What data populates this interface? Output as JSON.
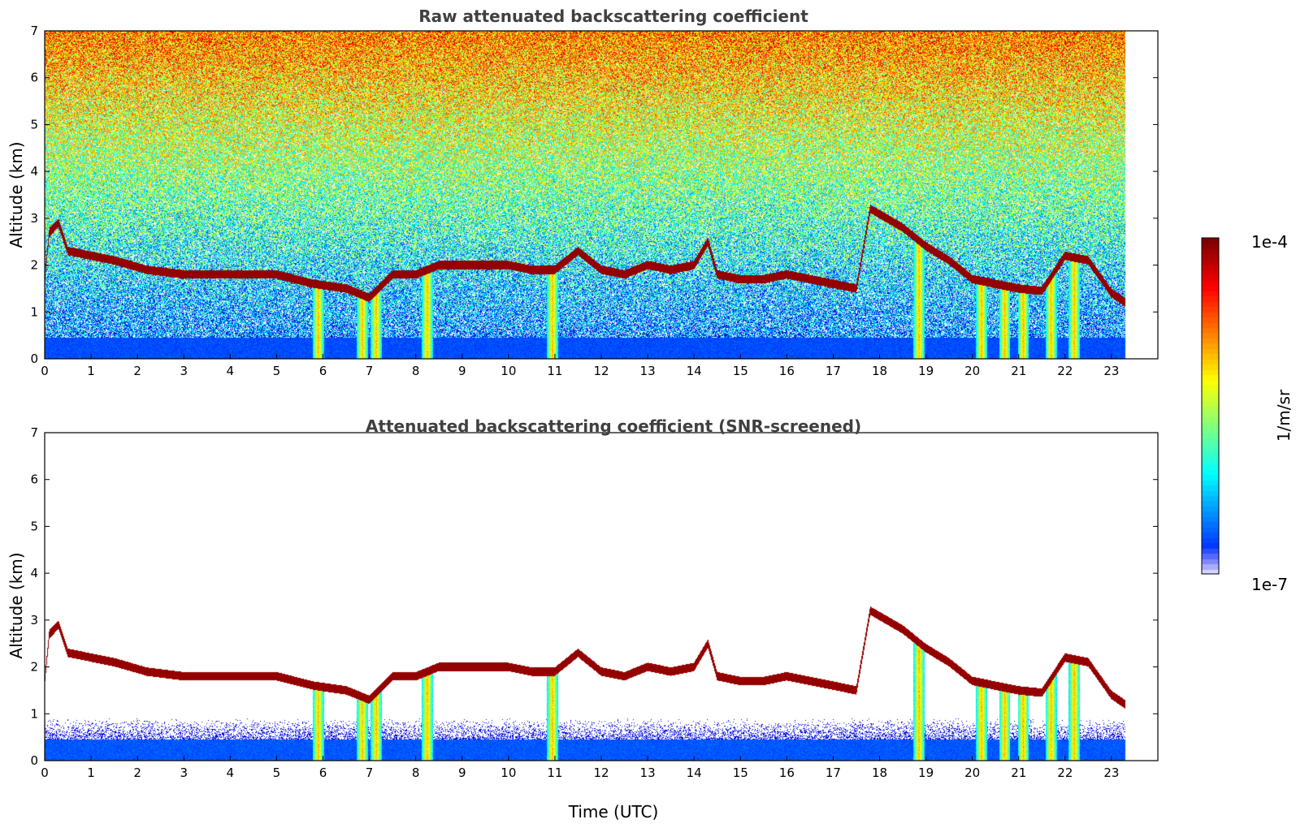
{
  "chart_data": [
    {
      "type": "heatmap",
      "title": "Raw attenuated backscattering coefficient",
      "xlabel": "",
      "ylabel": "Altitude (km)",
      "xlim": [
        0,
        24
      ],
      "ylim": [
        0,
        7
      ],
      "xticks": [
        "0",
        "1",
        "2",
        "3",
        "4",
        "5",
        "6",
        "7",
        "8",
        "9",
        "10",
        "11",
        "12",
        "13",
        "14",
        "15",
        "16",
        "17",
        "18",
        "19",
        "20",
        "21",
        "22",
        "23"
      ],
      "yticks": [
        "0",
        "1",
        "2",
        "3",
        "4",
        "5",
        "6",
        "7"
      ],
      "data_end_hour": 23.3,
      "screened": false,
      "cloud_layer_km": [
        [
          0,
          1.7
        ],
        [
          0.1,
          2.7
        ],
        [
          0.3,
          2.9
        ],
        [
          0.5,
          2.3
        ],
        [
          1.0,
          2.2
        ],
        [
          1.5,
          2.1
        ],
        [
          2.2,
          1.9
        ],
        [
          3.0,
          1.8
        ],
        [
          4.0,
          1.8
        ],
        [
          5.0,
          1.8
        ],
        [
          5.8,
          1.6
        ],
        [
          6.5,
          1.5
        ],
        [
          7.0,
          1.3
        ],
        [
          7.5,
          1.8
        ],
        [
          8.0,
          1.8
        ],
        [
          8.5,
          2.0
        ],
        [
          9.0,
          2.0
        ],
        [
          10.0,
          2.0
        ],
        [
          10.5,
          1.9
        ],
        [
          11.0,
          1.9
        ],
        [
          11.5,
          2.3
        ],
        [
          12.0,
          1.9
        ],
        [
          12.5,
          1.8
        ],
        [
          13.0,
          2.0
        ],
        [
          13.5,
          1.9
        ],
        [
          14.0,
          2.0
        ],
        [
          14.3,
          2.5
        ],
        [
          14.5,
          1.8
        ],
        [
          15.0,
          1.7
        ],
        [
          15.5,
          1.7
        ],
        [
          16.0,
          1.8
        ],
        [
          16.5,
          1.7
        ],
        [
          17.0,
          1.6
        ],
        [
          17.5,
          1.5
        ],
        [
          17.8,
          3.2
        ],
        [
          18.5,
          2.8
        ],
        [
          19.0,
          2.4
        ],
        [
          19.5,
          2.1
        ],
        [
          20.0,
          1.7
        ],
        [
          20.5,
          1.6
        ],
        [
          21.0,
          1.5
        ],
        [
          21.5,
          1.45
        ],
        [
          22.0,
          2.2
        ],
        [
          22.5,
          2.1
        ],
        [
          23.0,
          1.4
        ],
        [
          23.3,
          1.2
        ]
      ],
      "precipitation_hours": [
        5.9,
        6.85,
        7.15,
        8.25,
        10.95,
        18.85,
        20.2,
        20.7,
        21.1,
        21.7,
        22.2
      ],
      "colorbar": {
        "min": "1e-7",
        "max": "1e-4",
        "unit": "1/m/sr",
        "colormap": "jet"
      }
    },
    {
      "type": "heatmap",
      "title": "Attenuated backscattering coefficient (SNR-screened)",
      "xlabel": "Time (UTC)",
      "ylabel": "Altitude (km)",
      "xlim": [
        0,
        24
      ],
      "ylim": [
        0,
        7
      ],
      "xticks": [
        "0",
        "1",
        "2",
        "3",
        "4",
        "5",
        "6",
        "7",
        "8",
        "9",
        "10",
        "11",
        "12",
        "13",
        "14",
        "15",
        "16",
        "17",
        "18",
        "19",
        "20",
        "21",
        "22",
        "23"
      ],
      "yticks": [
        "0",
        "1",
        "2",
        "3",
        "4",
        "5",
        "6",
        "7"
      ],
      "data_end_hour": 23.3,
      "screened": true,
      "colorbar": {
        "min": "1e-7",
        "max": "1e-4",
        "unit": "1/m/sr",
        "colormap": "jet"
      }
    }
  ]
}
